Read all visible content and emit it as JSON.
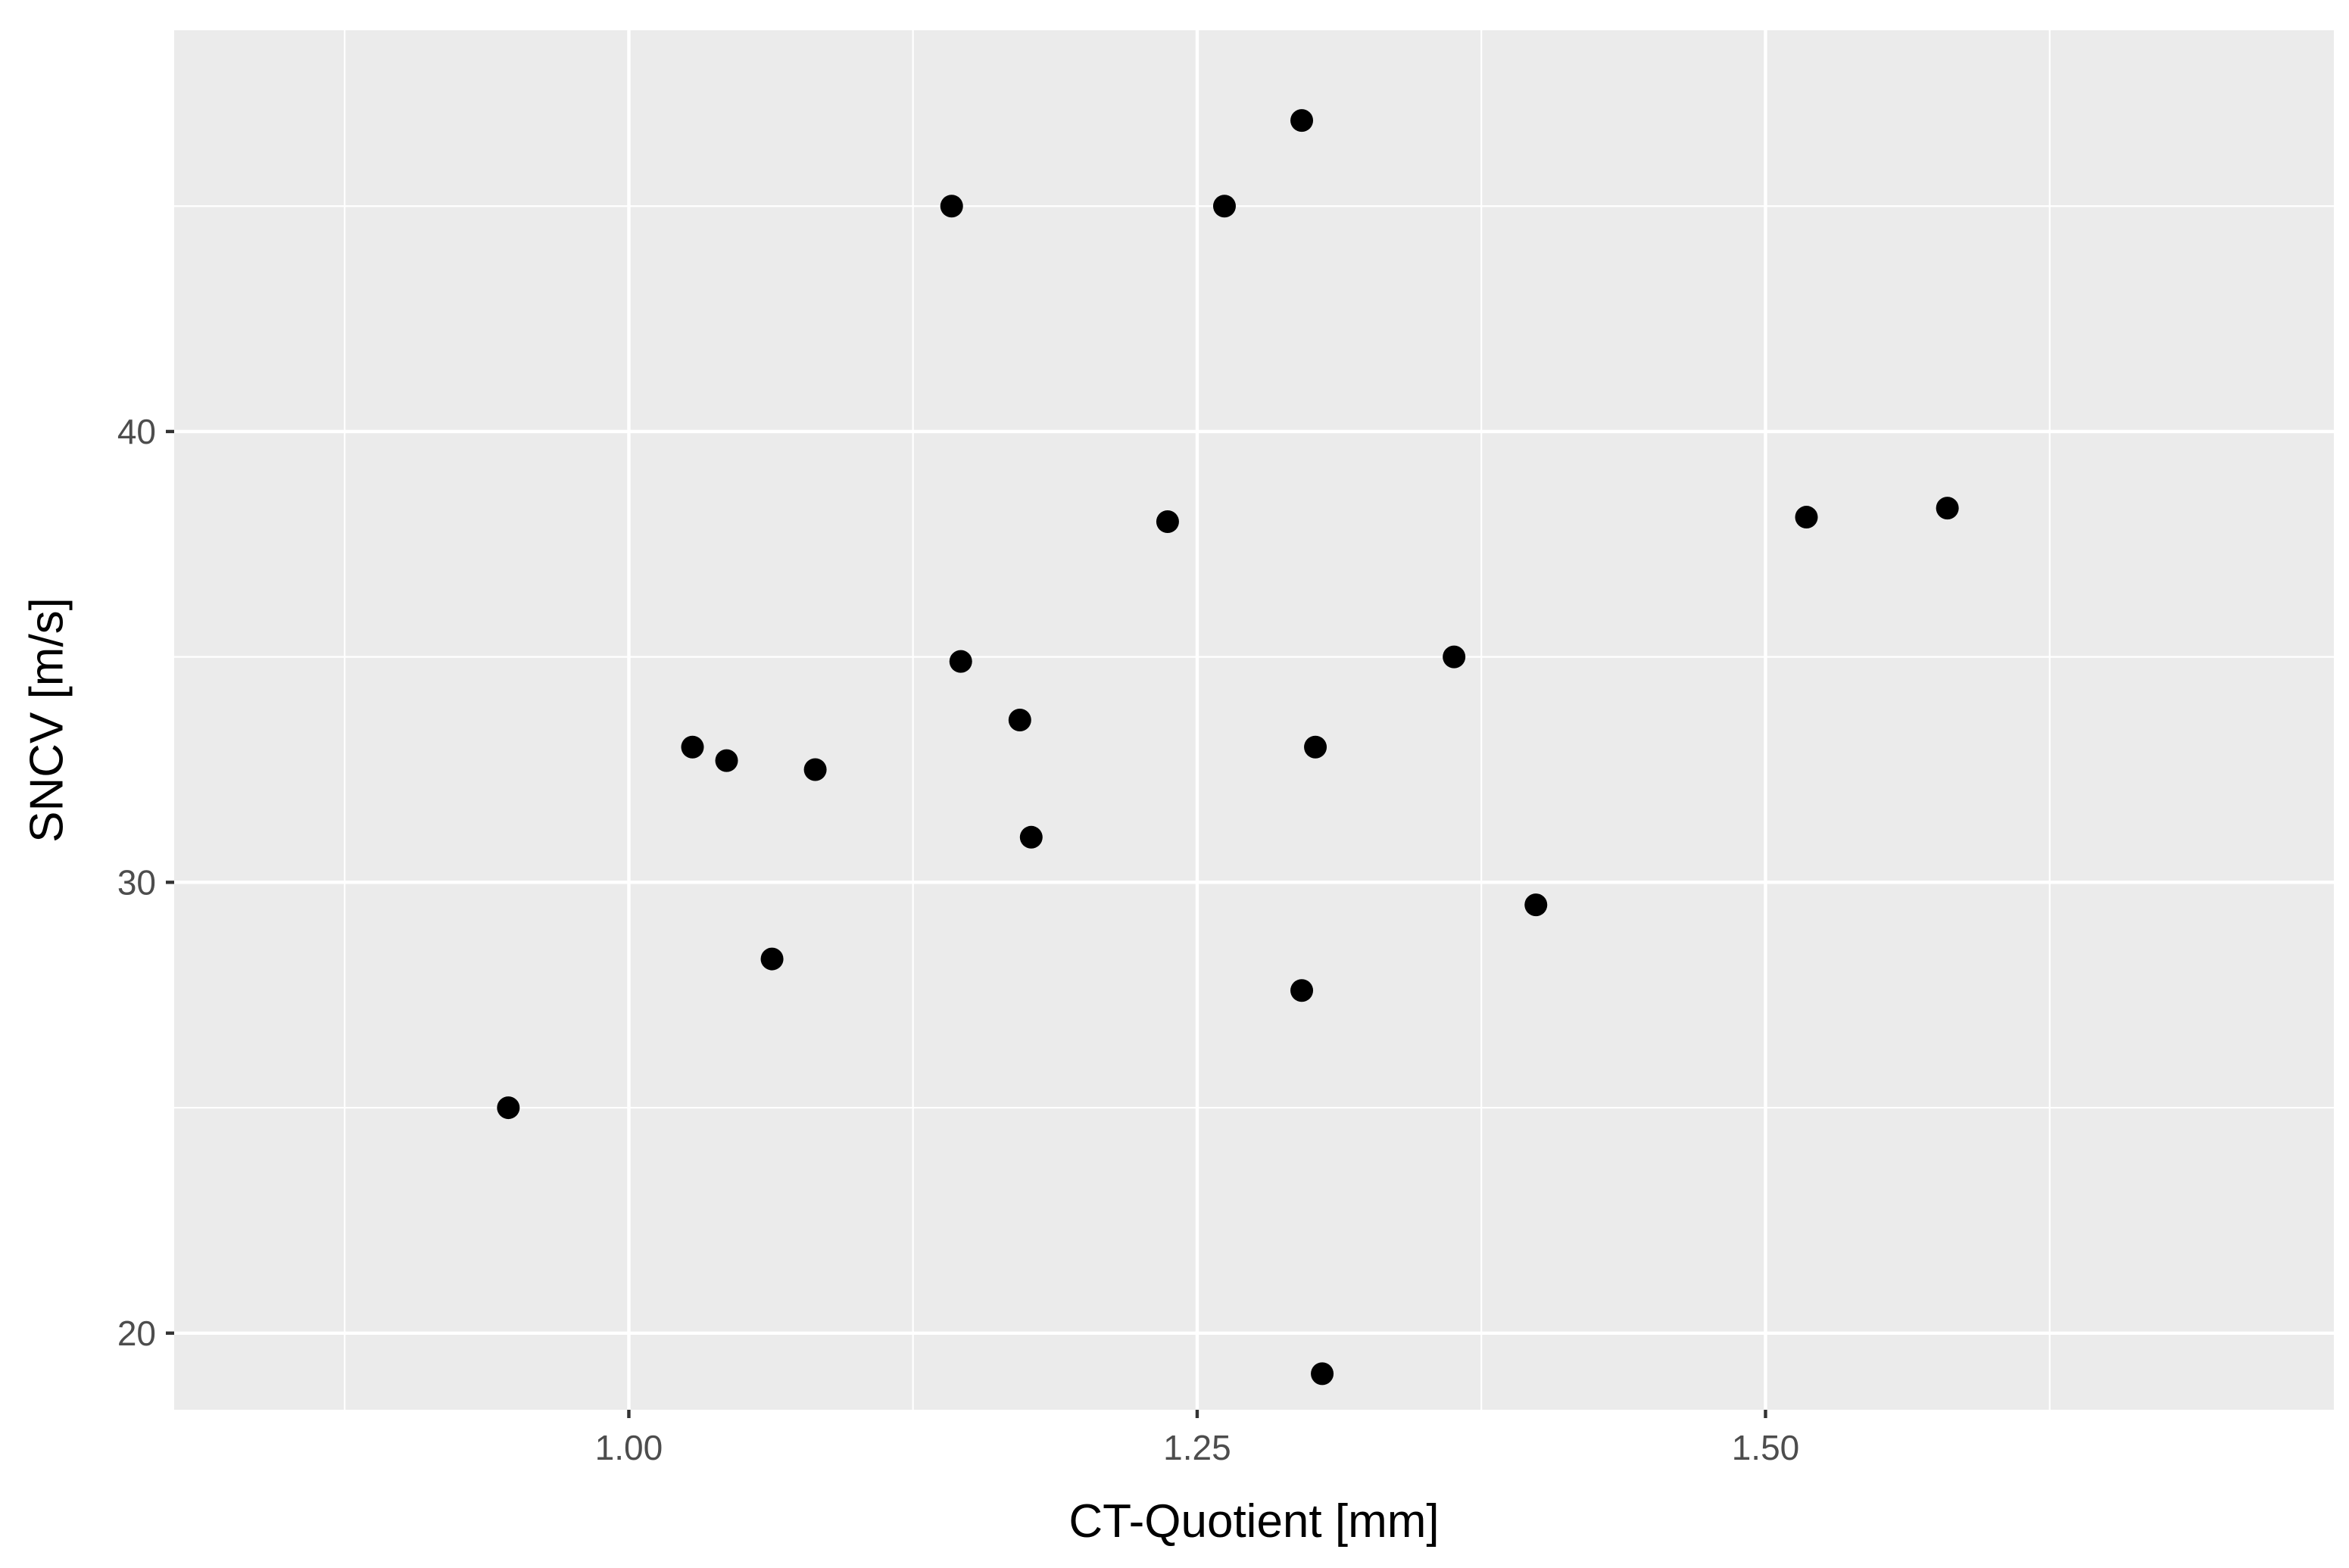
{
  "chart_data": {
    "type": "scatter",
    "title": "",
    "xlabel": "CT-Quotient [mm]",
    "ylabel": "SNCV [m/s]",
    "xlim": [
      0.8,
      1.75
    ],
    "ylim": [
      18.3,
      48.9
    ],
    "x_ticks": [
      1.0,
      1.25,
      1.5
    ],
    "x_tick_labels": [
      "1.00",
      "1.25",
      "1.50"
    ],
    "x_minor_ticks": [
      0.875,
      1.125,
      1.375,
      1.625
    ],
    "y_ticks": [
      20,
      30,
      40
    ],
    "y_tick_labels": [
      "20",
      "30",
      "40"
    ],
    "y_minor_ticks": [
      25,
      35,
      45
    ],
    "grid": true,
    "legend": "none",
    "colors": {
      "panel_background": "#ebebeb",
      "grid_major": "#ffffff",
      "grid_minor": "#ffffff",
      "point": "#000000",
      "tick_text": "#4d4d4d",
      "tick_mark": "#333333",
      "axis_title": "#000000"
    },
    "points": [
      {
        "x": 0.947,
        "y": 25.0
      },
      {
        "x": 1.028,
        "y": 33.0
      },
      {
        "x": 1.043,
        "y": 32.7
      },
      {
        "x": 1.063,
        "y": 28.3
      },
      {
        "x": 1.082,
        "y": 32.5
      },
      {
        "x": 1.142,
        "y": 45.0
      },
      {
        "x": 1.146,
        "y": 34.9
      },
      {
        "x": 1.172,
        "y": 33.6
      },
      {
        "x": 1.177,
        "y": 31.0
      },
      {
        "x": 1.237,
        "y": 38.0
      },
      {
        "x": 1.262,
        "y": 45.0
      },
      {
        "x": 1.296,
        "y": 46.9
      },
      {
        "x": 1.296,
        "y": 27.6
      },
      {
        "x": 1.302,
        "y": 33.0
      },
      {
        "x": 1.305,
        "y": 19.1
      },
      {
        "x": 1.363,
        "y": 35.0
      },
      {
        "x": 1.399,
        "y": 29.5
      },
      {
        "x": 1.518,
        "y": 38.1
      },
      {
        "x": 1.58,
        "y": 38.3
      }
    ]
  }
}
